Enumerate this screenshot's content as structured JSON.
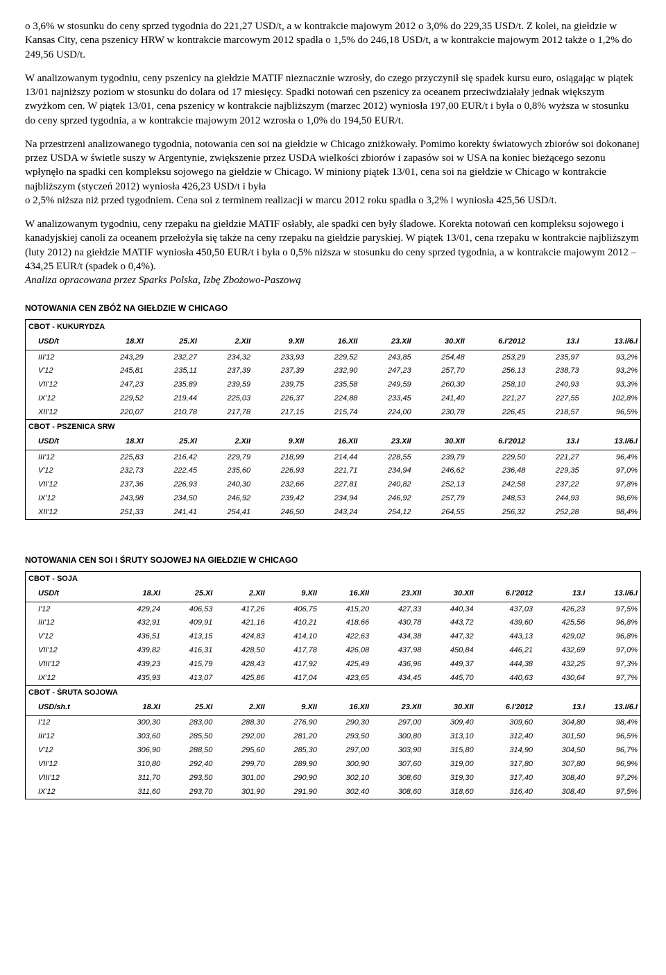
{
  "paragraphs": {
    "p1": "o 3,6% w stosunku do ceny sprzed tygodnia do 221,27 USD/t, a w kontrakcie majowym 2012 o 3,0% do 229,35 USD/t. Z kolei, na giełdzie w Kansas City, cena pszenicy HRW w kontrakcie marcowym 2012 spadła o 1,5% do 246,18 USD/t, a w kontrakcie majowym 2012 także o 1,2% do 249,56 USD/t.",
    "p2": "W analizowanym tygodniu, ceny pszenicy na giełdzie MATIF nieznacznie wzrosły, do czego przyczynił się spadek kursu euro, osiągając w piątek 13/01 najniższy poziom w stosunku do dolara od 17 miesięcy. Spadki notowań cen pszenicy za oceanem przeciwdziałały jednak większym zwyżkom cen. W piątek 13/01, cena pszenicy w kontrakcie najbliższym (marzec 2012) wyniosła 197,00 EUR/t i była o 0,8% wyższa w stosunku do ceny sprzed tygodnia, a w kontrakcie majowym 2012 wzrosła o 1,0% do 194,50 EUR/t.",
    "p3": "Na przestrzeni analizowanego tygodnia, notowania cen soi na giełdzie w Chicago zniżkowały. Pomimo korekty światowych zbiorów soi dokonanej przez USDA w świetle suszy w Argentynie, zwiększenie przez USDA wielkości zbiorów i zapasów soi w USA na koniec bieżącego sezonu wpłynęło na spadki cen kompleksu sojowego na giełdzie w Chicago. W miniony piątek 13/01, cena soi na giełdzie w Chicago w kontrakcie najbliższym (styczeń 2012) wyniosła 426,23 USD/t i była",
    "p4": "o 2,5% niższa niż przed tygodniem. Cena soi z terminem realizacji w marcu 2012 roku spadła o 3,2% i wyniosła 425,56 USD/t.",
    "p5": "W analizowanym tygodniu, ceny rzepaku na giełdzie MATIF osłabły, ale spadki cen były śladowe. Korekta notowań cen kompleksu sojowego i kanadyjskiej canoli za oceanem przełożyła się także na ceny rzepaku na giełdzie paryskiej. W piątek 13/01, cena rzepaku w kontrakcie najbliższym (luty 2012) na giełdzie MATIF wyniosła 450,50 EUR/t i była o 0,5% niższa w stosunku do ceny sprzed tygodnia, a w kontrakcie majowym 2012 – 434,25 EUR/t (spadek o 0,4%).",
    "p6": "Analiza opracowana przez Sparks Polska, Izbę Zbożowo-Paszową"
  },
  "heading1": "NOTOWANIA CEN ZBÓŻ NA GIEŁDZIE W CHICAGO",
  "heading2": "NOTOWANIA CEN SOI I ŚRUTY SOJOWEJ NA GIEŁDZIE W CHICAGO",
  "columns_main": [
    "18.XI",
    "25.XI",
    "2.XII",
    "9.XII",
    "16.XII",
    "23.XII",
    "30.XII",
    "6.I'2012",
    "13.I",
    "13.I/6.I"
  ],
  "table1": {
    "unit1": "USD/t",
    "label1": "CBOT - KUKURYDZA",
    "rows1": [
      {
        "m": "III'12",
        "v": [
          "243,29",
          "232,27",
          "234,32",
          "233,93",
          "229,52",
          "243,85",
          "254,48",
          "253,29",
          "235,97",
          "93,2%"
        ]
      },
      {
        "m": "V'12",
        "v": [
          "245,81",
          "235,11",
          "237,39",
          "237,39",
          "232,90",
          "247,23",
          "257,70",
          "256,13",
          "238,73",
          "93,2%"
        ]
      },
      {
        "m": "VII'12",
        "v": [
          "247,23",
          "235,89",
          "239,59",
          "239,75",
          "235,58",
          "249,59",
          "260,30",
          "258,10",
          "240,93",
          "93,3%"
        ]
      },
      {
        "m": "IX'12",
        "v": [
          "229,52",
          "219,44",
          "225,03",
          "226,37",
          "224,88",
          "233,45",
          "241,40",
          "221,27",
          "227,55",
          "102,8%"
        ]
      },
      {
        "m": "XII'12",
        "v": [
          "220,07",
          "210,78",
          "217,78",
          "217,15",
          "215,74",
          "224,00",
          "230,78",
          "226,45",
          "218,57",
          "96,5%"
        ]
      }
    ],
    "label2": "CBOT - PSZENICA SRW",
    "unit2": "USD/t",
    "rows2": [
      {
        "m": "III'12",
        "v": [
          "225,83",
          "216,42",
          "229,79",
          "218,99",
          "214,44",
          "228,55",
          "239,79",
          "229,50",
          "221,27",
          "96,4%"
        ]
      },
      {
        "m": "V'12",
        "v": [
          "232,73",
          "222,45",
          "235,60",
          "226,93",
          "221,71",
          "234,94",
          "246,62",
          "236,48",
          "229,35",
          "97,0%"
        ]
      },
      {
        "m": "VII'12",
        "v": [
          "237,36",
          "226,93",
          "240,30",
          "232,66",
          "227,81",
          "240,82",
          "252,13",
          "242,58",
          "237,22",
          "97,8%"
        ]
      },
      {
        "m": "IX'12",
        "v": [
          "243,98",
          "234,50",
          "246,92",
          "239,42",
          "234,94",
          "246,92",
          "257,79",
          "248,53",
          "244,93",
          "98,6%"
        ]
      },
      {
        "m": "XII'12",
        "v": [
          "251,33",
          "241,41",
          "254,41",
          "246,50",
          "243,24",
          "254,12",
          "264,55",
          "256,32",
          "252,28",
          "98,4%"
        ]
      }
    ]
  },
  "table2": {
    "label1": "CBOT - SOJA",
    "unit1": "USD/t",
    "rows1": [
      {
        "m": "I'12",
        "v": [
          "429,24",
          "406,53",
          "417,26",
          "406,75",
          "415,20",
          "427,33",
          "440,34",
          "437,03",
          "426,23",
          "97,5%"
        ]
      },
      {
        "m": "III'12",
        "v": [
          "432,91",
          "409,91",
          "421,16",
          "410,21",
          "418,66",
          "430,78",
          "443,72",
          "439,60",
          "425,56",
          "96,8%"
        ]
      },
      {
        "m": "V'12",
        "v": [
          "436,51",
          "413,15",
          "424,83",
          "414,10",
          "422,63",
          "434,38",
          "447,32",
          "443,13",
          "429,02",
          "96,8%"
        ]
      },
      {
        "m": "VII'12",
        "v": [
          "439,82",
          "416,31",
          "428,50",
          "417,78",
          "426,08",
          "437,98",
          "450,84",
          "446,21",
          "432,69",
          "97,0%"
        ]
      },
      {
        "m": "VIII'12",
        "v": [
          "439,23",
          "415,79",
          "428,43",
          "417,92",
          "425,49",
          "436,96",
          "449,37",
          "444,38",
          "432,25",
          "97,3%"
        ]
      },
      {
        "m": "IX'12",
        "v": [
          "435,93",
          "413,07",
          "425,86",
          "417,04",
          "423,65",
          "434,45",
          "445,70",
          "440,63",
          "430,64",
          "97,7%"
        ]
      }
    ],
    "label2": "CBOT - ŚRUTA SOJOWA",
    "unit2": "USD/sh.t",
    "rows2": [
      {
        "m": "I'12",
        "v": [
          "300,30",
          "283,00",
          "288,30",
          "276,90",
          "290,30",
          "297,00",
          "309,40",
          "309,60",
          "304,80",
          "98,4%"
        ]
      },
      {
        "m": "III'12",
        "v": [
          "303,60",
          "285,50",
          "292,00",
          "281,20",
          "293,50",
          "300,80",
          "313,10",
          "312,40",
          "301,50",
          "96,5%"
        ]
      },
      {
        "m": "V'12",
        "v": [
          "306,90",
          "288,50",
          "295,60",
          "285,30",
          "297,00",
          "303,90",
          "315,80",
          "314,90",
          "304,50",
          "96,7%"
        ]
      },
      {
        "m": "VII'12",
        "v": [
          "310,80",
          "292,40",
          "299,70",
          "289,90",
          "300,90",
          "307,60",
          "319,00",
          "317,80",
          "307,80",
          "96,9%"
        ]
      },
      {
        "m": "VIII'12",
        "v": [
          "311,70",
          "293,50",
          "301,00",
          "290,90",
          "302,10",
          "308,60",
          "319,30",
          "317,40",
          "308,40",
          "97,2%"
        ]
      },
      {
        "m": "IX'12",
        "v": [
          "311,60",
          "293,70",
          "301,90",
          "291,90",
          "302,40",
          "308,60",
          "318,60",
          "316,40",
          "308,40",
          "97,5%"
        ]
      }
    ]
  }
}
